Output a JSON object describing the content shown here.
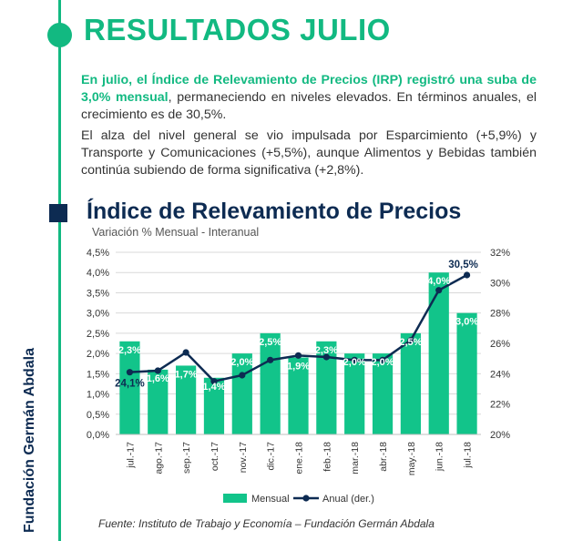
{
  "header": {
    "title": "RESULTADOS JULIO"
  },
  "intro": {
    "bold": "En julio, el Índice de Relevamiento de Precios (IRP) registró una suba de 3,0% mensual",
    "rest": ", permaneciendo en niveles elevados. En términos anuales, el crecimiento es de 30,5%."
  },
  "paragraph2": "El alza del nivel general se vio impulsada por Esparcimiento (+5,9%) y Transporte y Comunicaciones (+5,5%), aunque Alimentos y Bebidas también continúa subiendo de forma significativa (+2,8%).",
  "sidebar_text": "Fundación Germán Abdala",
  "source": "Fuente: Instituto de Trabajo y Economía – Fundación Germán Abdala",
  "colors": {
    "accent": "#12b981",
    "bar": "#12c48a",
    "line": "#0d2b52"
  },
  "chart_data": {
    "type": "bar+line",
    "title": "Índice de Relevamiento de Precios",
    "subtitle": "Variación % Mensual - Interanual",
    "categories": [
      "jul.-17",
      "ago.-17",
      "sep.-17",
      "oct.-17",
      "nov.-17",
      "dic.-17",
      "ene.-18",
      "feb.-18",
      "mar.-18",
      "abr.-18",
      "may.-18",
      "jun.-18",
      "jul.-18"
    ],
    "series": [
      {
        "name": "Mensual",
        "type": "bar",
        "axis": "left",
        "values": [
          2.3,
          1.6,
          1.7,
          1.4,
          2.0,
          2.5,
          1.9,
          2.3,
          2.0,
          2.0,
          2.5,
          4.0,
          3.0
        ],
        "labels": [
          "2,3%",
          "1,6%",
          "1,7%",
          "1,4%",
          "2,0%",
          "2,5%",
          "1,9%",
          "2,3%",
          "2,0%",
          "2,0%",
          "2,5%",
          "4,0%",
          "3,0%"
        ]
      },
      {
        "name": "Anual (der.)",
        "type": "line",
        "axis": "right",
        "values": [
          24.1,
          24.2,
          25.4,
          23.5,
          23.9,
          24.9,
          25.2,
          25.1,
          24.9,
          24.9,
          26.2,
          29.5,
          30.5
        ],
        "labels": [
          "24,1%",
          "",
          "",
          "",
          "",
          "",
          "",
          "",
          "",
          "",
          "",
          "",
          "30,5%"
        ]
      }
    ],
    "y_left": {
      "min": 0,
      "max": 4.5,
      "step": 0.5,
      "ticks": [
        "0,0%",
        "0,5%",
        "1,0%",
        "1,5%",
        "2,0%",
        "2,5%",
        "3,0%",
        "3,5%",
        "4,0%",
        "4,5%"
      ]
    },
    "y_right": {
      "min": 20,
      "max": 32,
      "step": 2,
      "ticks": [
        "20%",
        "22%",
        "24%",
        "26%",
        "28%",
        "30%",
        "32%"
      ]
    },
    "legend": {
      "position": "bottom",
      "entries": [
        "Mensual",
        "Anual (der.)"
      ]
    },
    "grid": true
  }
}
